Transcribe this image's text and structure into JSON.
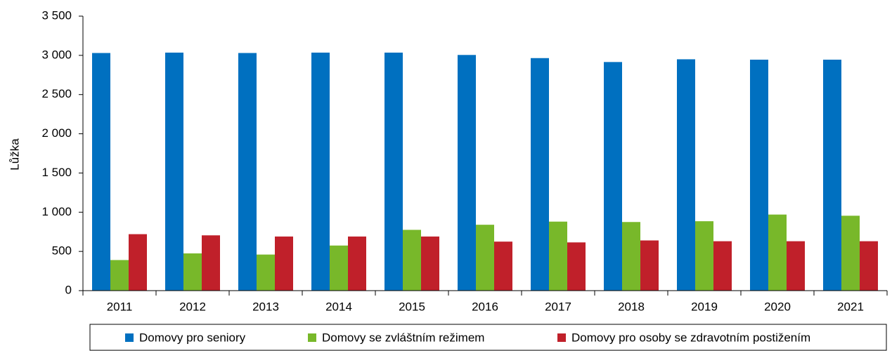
{
  "chart_data": {
    "type": "bar",
    "ylabel": "Lůžka",
    "categories": [
      "2011",
      "2012",
      "2013",
      "2014",
      "2015",
      "2016",
      "2017",
      "2018",
      "2019",
      "2020",
      "2021"
    ],
    "series": [
      {
        "name": "Domovy pro seniory",
        "color": "#0070c0",
        "values": [
          3030,
          3035,
          3030,
          3035,
          3035,
          3005,
          2965,
          2915,
          2950,
          2945,
          2945
        ]
      },
      {
        "name": "Domovy se zvláštním režimem",
        "color": "#78b82a",
        "values": [
          390,
          475,
          460,
          575,
          775,
          840,
          880,
          875,
          885,
          970,
          955
        ]
      },
      {
        "name": "Domovy pro osoby se zdravotním postižením",
        "color": "#c0202a",
        "values": [
          720,
          705,
          690,
          690,
          690,
          625,
          615,
          640,
          630,
          630,
          630
        ]
      }
    ],
    "ylim": [
      0,
      3500
    ],
    "yticks": [
      0,
      500,
      {
        "value": 1000,
        "label": "1 000"
      },
      {
        "value": 1500,
        "label": "1 500"
      },
      {
        "value": 2000,
        "label": "2 000"
      },
      {
        "value": 2500,
        "label": "2 500"
      },
      {
        "value": 3000,
        "label": "3 000"
      },
      {
        "value": 3500,
        "label": "3 500"
      }
    ],
    "grid": false,
    "legend": "bottom"
  }
}
